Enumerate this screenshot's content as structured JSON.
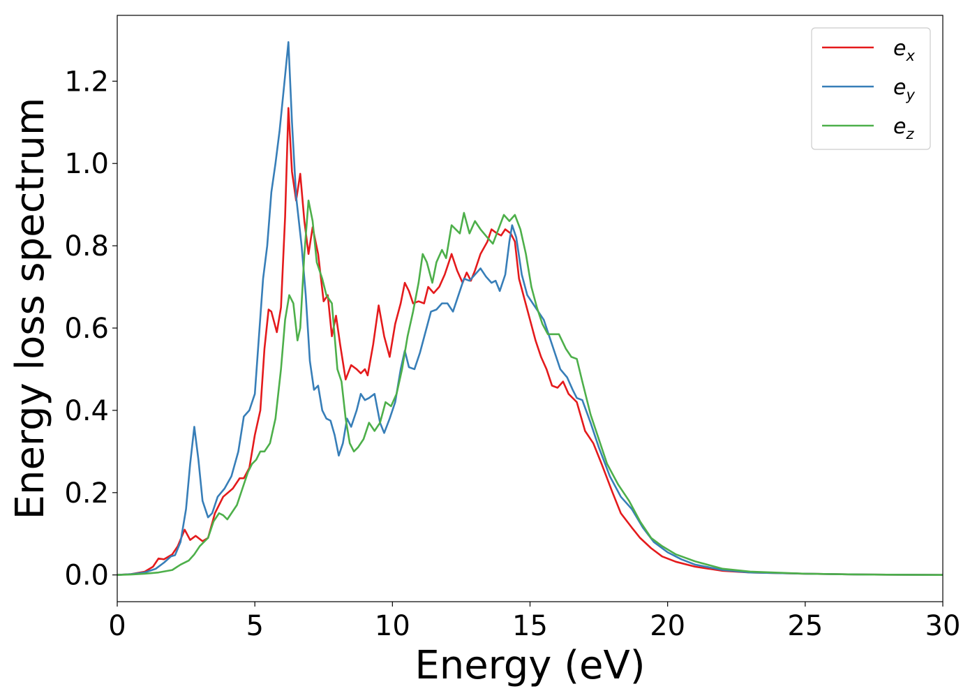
{
  "chart_data": {
    "type": "line",
    "title": "",
    "xlabel": "Energy (eV)",
    "ylabel": "Energy loss spectrum",
    "xlim": [
      0,
      30
    ],
    "ylim": [
      -0.065,
      1.36
    ],
    "xticks": [
      0,
      5,
      10,
      15,
      20,
      25,
      30
    ],
    "xtick_labels": [
      "0",
      "5",
      "10",
      "15",
      "20",
      "25",
      "30"
    ],
    "yticks": [
      0.0,
      0.2,
      0.4,
      0.6,
      0.8,
      1.0,
      1.2
    ],
    "ytick_labels": [
      "0.0",
      "0.2",
      "0.4",
      "0.6",
      "0.8",
      "1.0",
      "1.2"
    ],
    "grid": false,
    "legend_position": "top-right",
    "series": [
      {
        "name": "e_x",
        "legend_main": "e",
        "legend_sub": "x",
        "color": "#e41a1c",
        "points": [
          [
            0,
            0
          ],
          [
            0.5,
            0.002
          ],
          [
            1.0,
            0.008
          ],
          [
            1.3,
            0.02
          ],
          [
            1.5,
            0.04
          ],
          [
            1.7,
            0.038
          ],
          [
            2.0,
            0.05
          ],
          [
            2.2,
            0.07
          ],
          [
            2.45,
            0.11
          ],
          [
            2.65,
            0.085
          ],
          [
            2.85,
            0.095
          ],
          [
            3.1,
            0.082
          ],
          [
            3.3,
            0.09
          ],
          [
            3.55,
            0.15
          ],
          [
            3.85,
            0.19
          ],
          [
            4.2,
            0.21
          ],
          [
            4.45,
            0.235
          ],
          [
            4.6,
            0.235
          ],
          [
            4.8,
            0.26
          ],
          [
            5.0,
            0.34
          ],
          [
            5.2,
            0.4
          ],
          [
            5.35,
            0.55
          ],
          [
            5.5,
            0.645
          ],
          [
            5.6,
            0.64
          ],
          [
            5.8,
            0.59
          ],
          [
            5.95,
            0.65
          ],
          [
            6.1,
            0.87
          ],
          [
            6.22,
            1.135
          ],
          [
            6.35,
            0.98
          ],
          [
            6.5,
            0.91
          ],
          [
            6.65,
            0.975
          ],
          [
            6.8,
            0.86
          ],
          [
            6.95,
            0.78
          ],
          [
            7.1,
            0.845
          ],
          [
            7.3,
            0.78
          ],
          [
            7.5,
            0.665
          ],
          [
            7.65,
            0.68
          ],
          [
            7.8,
            0.58
          ],
          [
            7.95,
            0.63
          ],
          [
            8.1,
            0.56
          ],
          [
            8.3,
            0.475
          ],
          [
            8.5,
            0.51
          ],
          [
            8.7,
            0.5
          ],
          [
            8.85,
            0.49
          ],
          [
            9.0,
            0.5
          ],
          [
            9.1,
            0.485
          ],
          [
            9.3,
            0.56
          ],
          [
            9.5,
            0.655
          ],
          [
            9.7,
            0.58
          ],
          [
            9.9,
            0.53
          ],
          [
            10.1,
            0.61
          ],
          [
            10.3,
            0.66
          ],
          [
            10.45,
            0.71
          ],
          [
            10.6,
            0.69
          ],
          [
            10.75,
            0.66
          ],
          [
            10.95,
            0.665
          ],
          [
            11.15,
            0.66
          ],
          [
            11.3,
            0.7
          ],
          [
            11.5,
            0.685
          ],
          [
            11.7,
            0.7
          ],
          [
            11.9,
            0.73
          ],
          [
            12.15,
            0.78
          ],
          [
            12.35,
            0.74
          ],
          [
            12.55,
            0.71
          ],
          [
            12.7,
            0.735
          ],
          [
            12.85,
            0.715
          ],
          [
            13.0,
            0.74
          ],
          [
            13.2,
            0.78
          ],
          [
            13.45,
            0.81
          ],
          [
            13.6,
            0.84
          ],
          [
            13.8,
            0.83
          ],
          [
            13.95,
            0.825
          ],
          [
            14.1,
            0.84
          ],
          [
            14.3,
            0.83
          ],
          [
            14.45,
            0.81
          ],
          [
            14.6,
            0.72
          ],
          [
            14.8,
            0.67
          ],
          [
            15.0,
            0.62
          ],
          [
            15.2,
            0.57
          ],
          [
            15.4,
            0.53
          ],
          [
            15.6,
            0.5
          ],
          [
            15.8,
            0.46
          ],
          [
            16.0,
            0.455
          ],
          [
            16.2,
            0.47
          ],
          [
            16.4,
            0.44
          ],
          [
            16.7,
            0.42
          ],
          [
            17.0,
            0.35
          ],
          [
            17.3,
            0.32
          ],
          [
            17.6,
            0.27
          ],
          [
            18.0,
            0.2
          ],
          [
            18.3,
            0.15
          ],
          [
            18.7,
            0.115
          ],
          [
            19.0,
            0.09
          ],
          [
            19.4,
            0.065
          ],
          [
            19.8,
            0.045
          ],
          [
            20.3,
            0.032
          ],
          [
            21.0,
            0.02
          ],
          [
            22.0,
            0.01
          ],
          [
            23.0,
            0.006
          ],
          [
            25.0,
            0.003
          ],
          [
            27.0,
            0.001
          ],
          [
            30.0,
            0.0
          ]
        ]
      },
      {
        "name": "e_y",
        "legend_main": "e",
        "legend_sub": "y",
        "color": "#377eb8",
        "points": [
          [
            0,
            0
          ],
          [
            0.5,
            0.002
          ],
          [
            1.0,
            0.006
          ],
          [
            1.4,
            0.015
          ],
          [
            1.7,
            0.03
          ],
          [
            1.95,
            0.045
          ],
          [
            2.1,
            0.048
          ],
          [
            2.3,
            0.08
          ],
          [
            2.5,
            0.16
          ],
          [
            2.65,
            0.27
          ],
          [
            2.8,
            0.36
          ],
          [
            2.95,
            0.28
          ],
          [
            3.1,
            0.18
          ],
          [
            3.3,
            0.14
          ],
          [
            3.45,
            0.15
          ],
          [
            3.65,
            0.19
          ],
          [
            3.9,
            0.21
          ],
          [
            4.15,
            0.24
          ],
          [
            4.4,
            0.3
          ],
          [
            4.6,
            0.385
          ],
          [
            4.8,
            0.4
          ],
          [
            5.0,
            0.44
          ],
          [
            5.15,
            0.58
          ],
          [
            5.3,
            0.72
          ],
          [
            5.45,
            0.8
          ],
          [
            5.6,
            0.93
          ],
          [
            5.75,
            1.0
          ],
          [
            5.9,
            1.08
          ],
          [
            6.05,
            1.18
          ],
          [
            6.22,
            1.295
          ],
          [
            6.35,
            1.1
          ],
          [
            6.5,
            0.92
          ],
          [
            6.7,
            0.8
          ],
          [
            6.85,
            0.68
          ],
          [
            7.0,
            0.52
          ],
          [
            7.15,
            0.45
          ],
          [
            7.3,
            0.46
          ],
          [
            7.45,
            0.4
          ],
          [
            7.6,
            0.38
          ],
          [
            7.75,
            0.375
          ],
          [
            7.9,
            0.34
          ],
          [
            8.05,
            0.29
          ],
          [
            8.2,
            0.32
          ],
          [
            8.35,
            0.38
          ],
          [
            8.5,
            0.36
          ],
          [
            8.7,
            0.4
          ],
          [
            8.85,
            0.44
          ],
          [
            9.0,
            0.425
          ],
          [
            9.15,
            0.43
          ],
          [
            9.35,
            0.44
          ],
          [
            9.55,
            0.37
          ],
          [
            9.7,
            0.345
          ],
          [
            9.9,
            0.38
          ],
          [
            10.1,
            0.42
          ],
          [
            10.3,
            0.5
          ],
          [
            10.45,
            0.545
          ],
          [
            10.6,
            0.505
          ],
          [
            10.8,
            0.5
          ],
          [
            11.0,
            0.54
          ],
          [
            11.2,
            0.59
          ],
          [
            11.4,
            0.64
          ],
          [
            11.6,
            0.645
          ],
          [
            11.8,
            0.66
          ],
          [
            12.0,
            0.66
          ],
          [
            12.2,
            0.64
          ],
          [
            12.4,
            0.68
          ],
          [
            12.6,
            0.72
          ],
          [
            12.8,
            0.715
          ],
          [
            13.0,
            0.73
          ],
          [
            13.2,
            0.745
          ],
          [
            13.4,
            0.725
          ],
          [
            13.6,
            0.71
          ],
          [
            13.75,
            0.715
          ],
          [
            13.9,
            0.69
          ],
          [
            14.1,
            0.73
          ],
          [
            14.25,
            0.81
          ],
          [
            14.35,
            0.85
          ],
          [
            14.5,
            0.82
          ],
          [
            14.7,
            0.73
          ],
          [
            14.9,
            0.68
          ],
          [
            15.1,
            0.66
          ],
          [
            15.3,
            0.64
          ],
          [
            15.5,
            0.62
          ],
          [
            15.7,
            0.58
          ],
          [
            15.9,
            0.54
          ],
          [
            16.1,
            0.5
          ],
          [
            16.35,
            0.48
          ],
          [
            16.55,
            0.45
          ],
          [
            16.7,
            0.43
          ],
          [
            16.9,
            0.425
          ],
          [
            17.2,
            0.37
          ],
          [
            17.5,
            0.31
          ],
          [
            17.9,
            0.24
          ],
          [
            18.3,
            0.19
          ],
          [
            18.7,
            0.16
          ],
          [
            19.1,
            0.115
          ],
          [
            19.5,
            0.08
          ],
          [
            20.0,
            0.055
          ],
          [
            20.5,
            0.038
          ],
          [
            21.0,
            0.025
          ],
          [
            22.0,
            0.012
          ],
          [
            23.0,
            0.006
          ],
          [
            25.0,
            0.003
          ],
          [
            27.0,
            0.001
          ],
          [
            30.0,
            0.0
          ]
        ]
      },
      {
        "name": "e_z",
        "legend_main": "e",
        "legend_sub": "z",
        "color": "#4daf4a",
        "points": [
          [
            0,
            0
          ],
          [
            0.5,
            0.001
          ],
          [
            1.0,
            0.003
          ],
          [
            1.5,
            0.006
          ],
          [
            2.0,
            0.012
          ],
          [
            2.3,
            0.025
          ],
          [
            2.6,
            0.035
          ],
          [
            2.8,
            0.05
          ],
          [
            3.0,
            0.07
          ],
          [
            3.3,
            0.09
          ],
          [
            3.5,
            0.13
          ],
          [
            3.7,
            0.15
          ],
          [
            3.85,
            0.145
          ],
          [
            4.0,
            0.135
          ],
          [
            4.15,
            0.15
          ],
          [
            4.35,
            0.17
          ],
          [
            4.55,
            0.21
          ],
          [
            4.75,
            0.25
          ],
          [
            4.9,
            0.27
          ],
          [
            5.05,
            0.28
          ],
          [
            5.2,
            0.3
          ],
          [
            5.35,
            0.3
          ],
          [
            5.55,
            0.32
          ],
          [
            5.75,
            0.38
          ],
          [
            5.95,
            0.5
          ],
          [
            6.1,
            0.62
          ],
          [
            6.25,
            0.68
          ],
          [
            6.4,
            0.66
          ],
          [
            6.55,
            0.57
          ],
          [
            6.65,
            0.6
          ],
          [
            6.8,
            0.78
          ],
          [
            6.95,
            0.91
          ],
          [
            7.1,
            0.86
          ],
          [
            7.25,
            0.76
          ],
          [
            7.45,
            0.72
          ],
          [
            7.6,
            0.68
          ],
          [
            7.8,
            0.66
          ],
          [
            8.0,
            0.5
          ],
          [
            8.15,
            0.47
          ],
          [
            8.3,
            0.38
          ],
          [
            8.45,
            0.32
          ],
          [
            8.6,
            0.3
          ],
          [
            8.75,
            0.31
          ],
          [
            8.95,
            0.33
          ],
          [
            9.15,
            0.37
          ],
          [
            9.35,
            0.35
          ],
          [
            9.55,
            0.37
          ],
          [
            9.75,
            0.42
          ],
          [
            9.95,
            0.41
          ],
          [
            10.15,
            0.44
          ],
          [
            10.35,
            0.5
          ],
          [
            10.55,
            0.58
          ],
          [
            10.75,
            0.64
          ],
          [
            10.95,
            0.71
          ],
          [
            11.1,
            0.78
          ],
          [
            11.25,
            0.76
          ],
          [
            11.45,
            0.71
          ],
          [
            11.6,
            0.76
          ],
          [
            11.8,
            0.79
          ],
          [
            11.95,
            0.77
          ],
          [
            12.15,
            0.85
          ],
          [
            12.3,
            0.84
          ],
          [
            12.45,
            0.83
          ],
          [
            12.6,
            0.88
          ],
          [
            12.8,
            0.83
          ],
          [
            13.0,
            0.86
          ],
          [
            13.2,
            0.84
          ],
          [
            13.45,
            0.82
          ],
          [
            13.65,
            0.805
          ],
          [
            13.85,
            0.84
          ],
          [
            14.05,
            0.875
          ],
          [
            14.25,
            0.86
          ],
          [
            14.45,
            0.875
          ],
          [
            14.65,
            0.84
          ],
          [
            14.85,
            0.78
          ],
          [
            15.05,
            0.7
          ],
          [
            15.25,
            0.65
          ],
          [
            15.45,
            0.61
          ],
          [
            15.65,
            0.585
          ],
          [
            15.85,
            0.585
          ],
          [
            16.05,
            0.585
          ],
          [
            16.3,
            0.55
          ],
          [
            16.5,
            0.53
          ],
          [
            16.7,
            0.525
          ],
          [
            16.9,
            0.47
          ],
          [
            17.2,
            0.39
          ],
          [
            17.5,
            0.33
          ],
          [
            17.8,
            0.27
          ],
          [
            18.2,
            0.22
          ],
          [
            18.6,
            0.18
          ],
          [
            19.0,
            0.13
          ],
          [
            19.4,
            0.09
          ],
          [
            19.8,
            0.07
          ],
          [
            20.3,
            0.05
          ],
          [
            21.0,
            0.033
          ],
          [
            22.0,
            0.015
          ],
          [
            23.0,
            0.008
          ],
          [
            25.0,
            0.003
          ],
          [
            27.0,
            0.001
          ],
          [
            30.0,
            0.0
          ]
        ]
      }
    ]
  }
}
